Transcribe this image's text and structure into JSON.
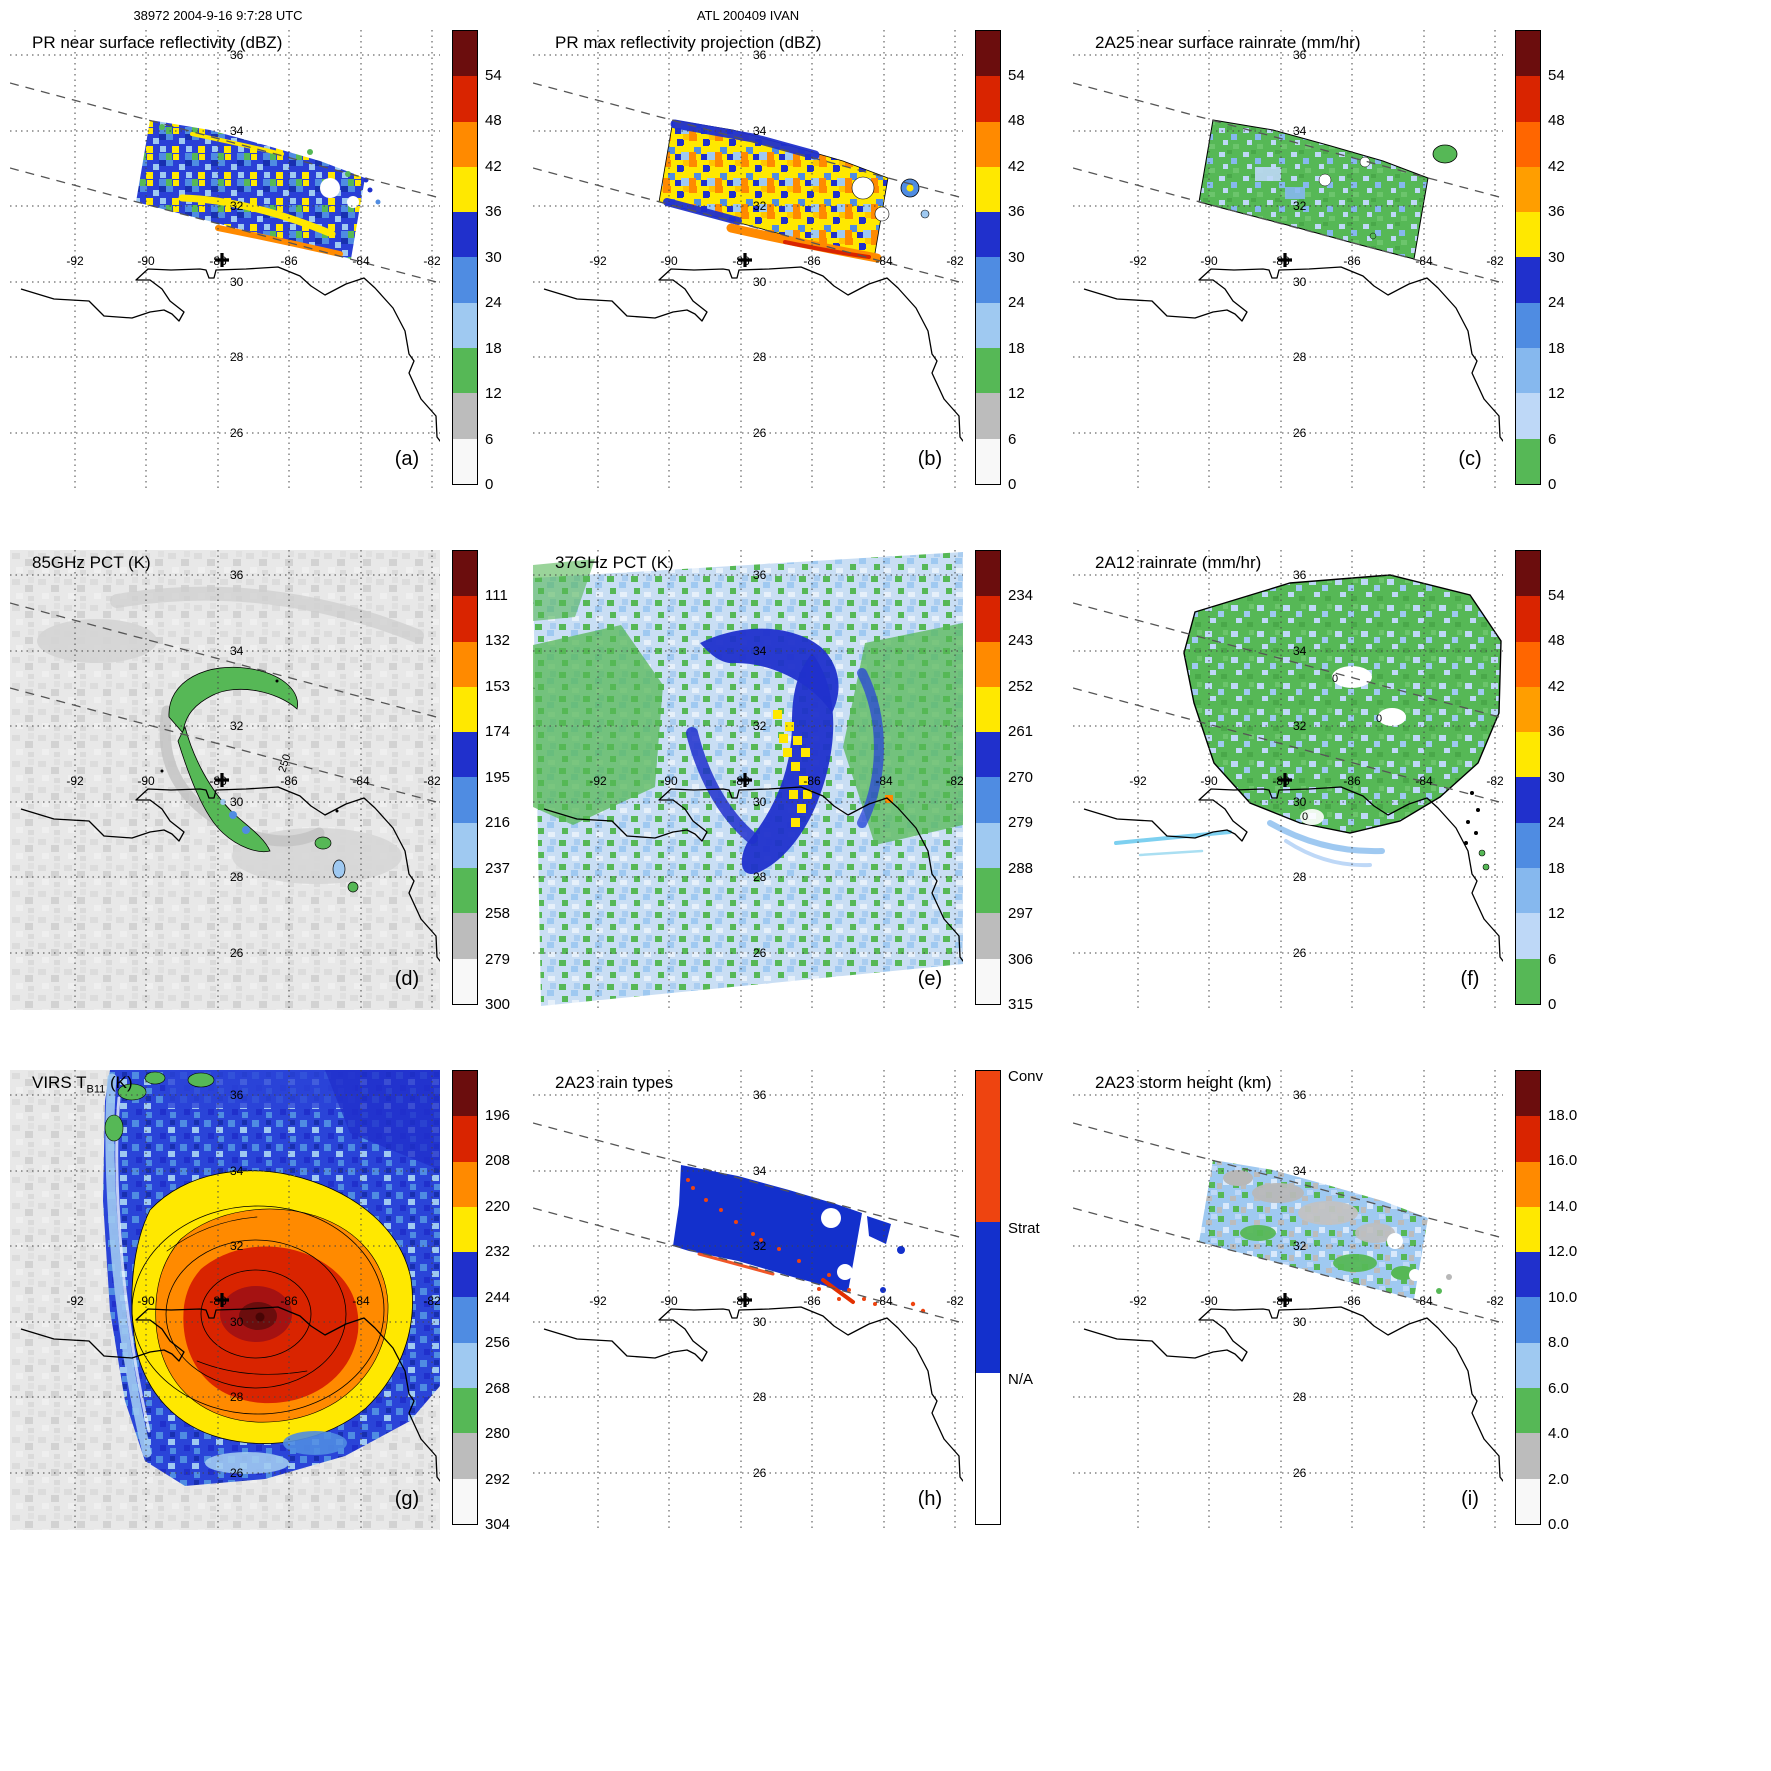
{
  "figure": {
    "header_left": "38972 2004-9-16 9:7:28 UTC",
    "header_center": "ATL 200409 IVAN"
  },
  "map": {
    "lon_labels": [
      "-92",
      "-90",
      "-88",
      "-86",
      "-84",
      "-82"
    ],
    "lat_labels": [
      "36",
      "34",
      "32",
      "30",
      "28",
      "26"
    ],
    "storm_center_marker": "+"
  },
  "palettes": {
    "standard_top_to_bottom": [
      "#6b0d0d",
      "#d92400",
      "#ff8a00",
      "#ffe800",
      "#2030cc",
      "#4f8ce2",
      "#9fc9f1",
      "#56b856",
      "#bcbcbc",
      "#f8f8f8"
    ],
    "rainrate_top_to_bottom": [
      "#6b0d0d",
      "#d92400",
      "#ff6600",
      "#ff9e00",
      "#ffe800",
      "#2030cc",
      "#4f8ce2",
      "#86b8ee",
      "#bed8f7",
      "#56b856"
    ],
    "rain_type": {
      "convective": "#ee4410",
      "stratiform": "#1330cc",
      "not_available": "#ffffff"
    }
  },
  "panels": [
    {
      "id": "a",
      "title": "PR near surface reflectivity (dBZ)",
      "letter": "(a)",
      "colorbar": {
        "palette": "standard_top_to_bottom",
        "ticks": [
          "54",
          "48",
          "42",
          "36",
          "30",
          "24",
          "18",
          "12",
          "6",
          "0"
        ]
      }
    },
    {
      "id": "b",
      "title": "PR max reflectivity projection (dBZ)",
      "letter": "(b)",
      "colorbar": {
        "palette": "standard_top_to_bottom",
        "ticks": [
          "54",
          "48",
          "42",
          "36",
          "30",
          "24",
          "18",
          "12",
          "6",
          "0"
        ]
      }
    },
    {
      "id": "c",
      "title": "2A25 near surface rainrate (mm/hr)",
      "letter": "(c)",
      "colorbar": {
        "palette": "rainrate_top_to_bottom",
        "ticks": [
          "54",
          "48",
          "42",
          "36",
          "30",
          "24",
          "18",
          "12",
          "6",
          "0"
        ]
      }
    },
    {
      "id": "d",
      "title": "85GHz PCT (K)",
      "letter": "(d)",
      "contour_label": "250",
      "colorbar": {
        "palette": "standard_top_to_bottom",
        "ticks": [
          "111",
          "132",
          "153",
          "174",
          "195",
          "216",
          "237",
          "258",
          "279",
          "300"
        ]
      }
    },
    {
      "id": "e",
      "title": "37GHz PCT (K)",
      "letter": "(e)",
      "colorbar": {
        "palette": "standard_top_to_bottom",
        "ticks": [
          "234",
          "243",
          "252",
          "261",
          "270",
          "279",
          "288",
          "297",
          "306",
          "315"
        ]
      }
    },
    {
      "id": "f",
      "title": "2A12 rainrate (mm/hr)",
      "letter": "(f)",
      "contour_label": "0",
      "colorbar": {
        "palette": "rainrate_top_to_bottom",
        "ticks": [
          "54",
          "48",
          "42",
          "36",
          "30",
          "24",
          "18",
          "12",
          "6",
          "0"
        ]
      }
    },
    {
      "id": "g",
      "title_pre": "VIRS T",
      "title_sub": "B11",
      "title_post": " (K)",
      "letter": "(g)",
      "colorbar": {
        "palette": "standard_top_to_bottom",
        "ticks": [
          "196",
          "208",
          "220",
          "232",
          "244",
          "256",
          "268",
          "280",
          "292",
          "304"
        ]
      }
    },
    {
      "id": "h",
      "title": "2A23 rain types",
      "letter": "(h)",
      "colorbar": {
        "type": "categories",
        "labels": [
          "Conv",
          "Strat",
          "N/A"
        ]
      }
    },
    {
      "id": "i",
      "title": "2A23 storm height (km)",
      "letter": "(i)",
      "colorbar": {
        "palette": "standard_top_to_bottom",
        "ticks": [
          "18.0",
          "16.0",
          "14.0",
          "12.0",
          "10.0",
          "8.0",
          "6.0",
          "4.0",
          "2.0",
          "0.0"
        ]
      }
    }
  ],
  "chart_data": [
    {
      "panel": "a",
      "type": "heatmap",
      "title": "PR near surface reflectivity (dBZ)",
      "units": "dBZ",
      "colorbar_ticks": [
        54,
        48,
        42,
        36,
        30,
        24,
        18,
        12,
        6,
        0
      ],
      "gridline_lons": [
        -92,
        -90,
        -88,
        -86,
        -84,
        -82
      ],
      "gridline_lats": [
        36,
        34,
        32,
        30,
        28,
        26
      ],
      "description": "Narrow tilted TRMM PR swath over the Gulf Coast; banded echoes 20-50 dBZ with yellow/orange convective arcs"
    },
    {
      "panel": "b",
      "type": "heatmap",
      "title": "PR max reflectivity projection (dBZ)",
      "units": "dBZ",
      "colorbar_ticks": [
        54,
        48,
        42,
        36,
        30,
        24,
        18,
        12,
        6,
        0
      ],
      "description": "Column-maximum reflectivity; broad 36-48 dBZ areas with an embedded 48+ dBZ band along the southern swath edge"
    },
    {
      "panel": "c",
      "type": "heatmap",
      "title": "2A25 near surface rainrate (mm/hr)",
      "units": "mm/hr",
      "colorbar_ticks": [
        54,
        48,
        42,
        36,
        30,
        24,
        18,
        12,
        6,
        0
      ],
      "description": "Mostly 0-6 mm/hr (green) rain with embedded 6-18 mm/hr light-blue patches"
    },
    {
      "panel": "d",
      "type": "heatmap",
      "title": "85GHz PCT (K)",
      "units": "K",
      "colorbar_ticks": [
        111,
        132,
        153,
        174,
        195,
        216,
        237,
        258,
        279,
        300
      ],
      "contour_labels": [
        250
      ],
      "description": "TMI 85GHz polarization-corrected temperature; comma-shaped 237-258 K depression with 195-216 K cores over gray warm background"
    },
    {
      "panel": "e",
      "type": "heatmap",
      "title": "37GHz PCT (K)",
      "units": "K",
      "colorbar_ticks": [
        234,
        243,
        252,
        261,
        270,
        279,
        288,
        297,
        306,
        315
      ],
      "description": "37GHz PCT; 261-270 K dark-blue comma band with 252-261 K (yellow) pixels near the storm center"
    },
    {
      "panel": "f",
      "type": "heatmap",
      "title": "2A12 rainrate (mm/hr)",
      "units": "mm/hr",
      "colorbar_ticks": [
        54,
        48,
        42,
        36,
        30,
        24,
        18,
        12,
        6,
        0
      ],
      "contour_labels": [
        0
      ],
      "description": "TMI 2A12 surface rainrate; widespread 0-6 mm/hr shield with 6-18 mm/hr bands near the center"
    },
    {
      "panel": "g",
      "type": "heatmap",
      "title": "VIRS TB11 (K)",
      "units": "K",
      "colorbar_ticks": [
        196,
        208,
        220,
        232,
        244,
        256,
        268,
        280,
        292,
        304
      ],
      "description": "VIRS 11-micron brightness temperature; cold central dense overcast below 208 K with a deep-red core below 196 K near the center"
    },
    {
      "panel": "h",
      "type": "categorical-map",
      "title": "2A23 rain types",
      "categories": [
        "Conv",
        "Strat",
        "N/A"
      ],
      "description": "PR swath rain classification; predominantly stratiform (blue) with scattered convective (red-orange) pixels along the southern band"
    },
    {
      "panel": "i",
      "type": "heatmap",
      "title": "2A23 storm height (km)",
      "units": "km",
      "colorbar_ticks": [
        18.0,
        16.0,
        14.0,
        12.0,
        10.0,
        8.0,
        6.0,
        4.0,
        2.0,
        0.0
      ],
      "description": "PR storm height; mostly 4-10 km echo tops (green/light blue) with gray mid-range patches"
    }
  ]
}
